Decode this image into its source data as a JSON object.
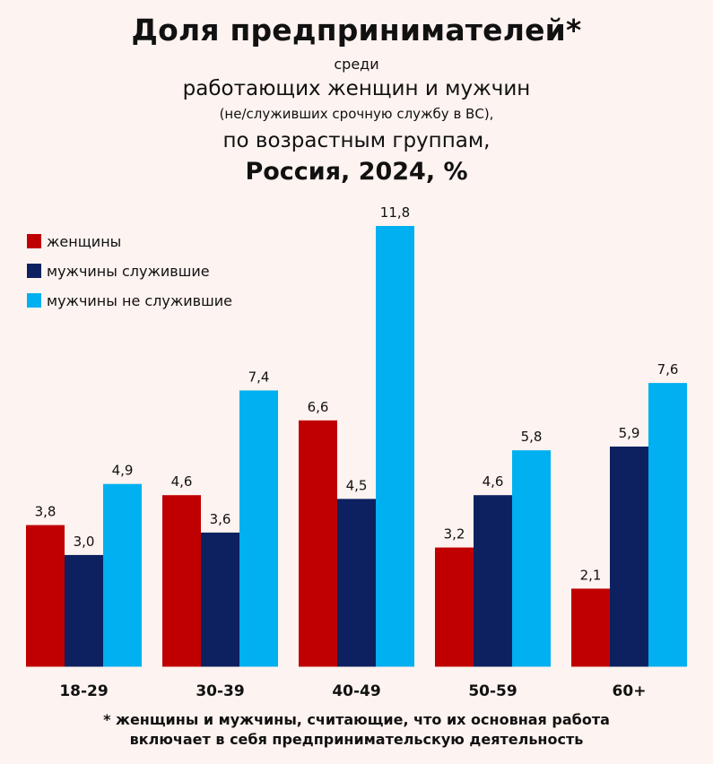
{
  "title": {
    "line1": "Доля предпринимателей*",
    "line2": "среди",
    "line3": "работающих женщин и мужчин",
    "line4": "(не/служивших срочную службу в ВС),",
    "line5": "по возрастным группам,",
    "line6": "Россия, 2024, %"
  },
  "footnote": {
    "line1": "* женщины и мужчины, считающие, что их основная работа",
    "line2": "включает в себя предпринимательскую деятельность"
  },
  "chart_data": {
    "type": "bar",
    "categories": [
      "18-29",
      "30-39",
      "40-49",
      "50-59",
      "60+"
    ],
    "series": [
      {
        "name": "женщины",
        "color": "#c00000",
        "values": [
          3.8,
          4.6,
          6.6,
          3.2,
          2.1
        ],
        "labels": [
          "3,8",
          "4,6",
          "6,6",
          "3,2",
          "2,1"
        ]
      },
      {
        "name": "мужчины служившие",
        "color": "#0d2160",
        "values": [
          3.0,
          3.6,
          4.5,
          4.6,
          5.9
        ],
        "labels": [
          "3,0",
          "3,6",
          "4,5",
          "4,6",
          "5,9"
        ]
      },
      {
        "name": "мужчины не служившие",
        "color": "#00b0f0",
        "values": [
          4.9,
          7.4,
          11.8,
          5.8,
          7.6
        ],
        "labels": [
          "4,9",
          "7,4",
          "11,8",
          "5,8",
          "7,6"
        ]
      }
    ],
    "ylim": [
      0,
      11.8
    ],
    "grid": false,
    "legend": "top-left"
  }
}
